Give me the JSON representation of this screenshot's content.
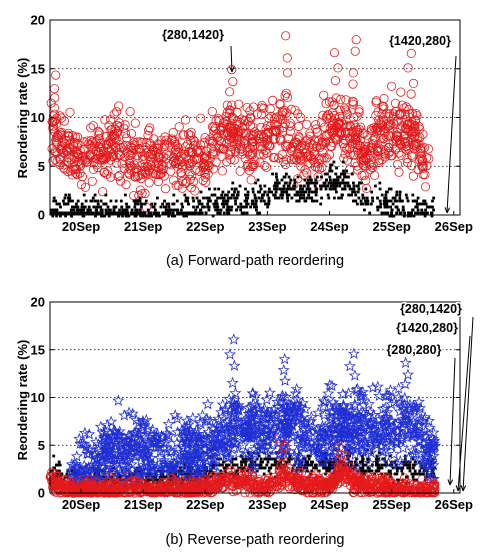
{
  "chart_data": [
    {
      "type": "scatter",
      "caption": "(a)  Forward-path reordering",
      "ylabel": "Reordering rate (%)",
      "xlabel": "",
      "x_ticks": [
        "20Sep",
        "21Sep",
        "22Sep",
        "23Sep",
        "24Sep",
        "25Sep",
        "26Sep"
      ],
      "xlim": [
        0,
        6.6
      ],
      "ylim": [
        0,
        20
      ],
      "y_ticks": [
        "0",
        "5",
        "10",
        "15",
        "20"
      ],
      "grid": true,
      "series": [
        {
          "marker": "circle",
          "color": "#e31a1c",
          "profile": [
            [
              0.0,
              9.0
            ],
            [
              0.2,
              7.0
            ],
            [
              0.5,
              5.5
            ],
            [
              0.8,
              6.5
            ],
            [
              1.0,
              7.0
            ],
            [
              1.2,
              6.5
            ],
            [
              1.5,
              5.0
            ],
            [
              1.8,
              5.5
            ],
            [
              2.0,
              6.0
            ],
            [
              2.2,
              6.0
            ],
            [
              2.5,
              6.0
            ],
            [
              2.7,
              8.0
            ],
            [
              2.9,
              8.5
            ],
            [
              3.1,
              8.0
            ],
            [
              3.3,
              7.5
            ],
            [
              3.5,
              8.5
            ],
            [
              3.7,
              9.0
            ],
            [
              3.9,
              7.5
            ],
            [
              4.1,
              6.0
            ],
            [
              4.3,
              6.5
            ],
            [
              4.5,
              9.0
            ],
            [
              4.7,
              8.5
            ],
            [
              4.9,
              8.0
            ],
            [
              5.1,
              6.0
            ],
            [
              5.3,
              8.0
            ],
            [
              5.5,
              9.0
            ],
            [
              5.7,
              8.5
            ],
            [
              5.9,
              8.0
            ],
            [
              6.1,
              5.0
            ]
          ],
          "peaks": [
            [
              0.05,
              14.5
            ],
            [
              2.95,
              15.5
            ],
            [
              3.8,
              20.3
            ],
            [
              4.6,
              17.0
            ],
            [
              4.9,
              18.5
            ],
            [
              5.8,
              17.0
            ]
          ],
          "spread": 3.8,
          "xrange": [
            0.0,
            6.1
          ]
        },
        {
          "marker": "square",
          "color": "#000000",
          "profile": [
            [
              0.0,
              0.4
            ],
            [
              1.0,
              0.3
            ],
            [
              2.0,
              0.3
            ],
            [
              2.7,
              1.2
            ],
            [
              3.0,
              1.5
            ],
            [
              3.5,
              2.0
            ],
            [
              3.8,
              3.0
            ],
            [
              4.0,
              2.0
            ],
            [
              4.5,
              3.5
            ],
            [
              4.8,
              3.0
            ],
            [
              5.0,
              2.0
            ],
            [
              5.5,
              1.0
            ],
            [
              6.0,
              0.6
            ],
            [
              6.2,
              0.2
            ]
          ],
          "peaks": [
            [
              4.55,
              6.0
            ],
            [
              4.75,
              5.5
            ]
          ],
          "spread": 1.8,
          "xrange": [
            0.0,
            6.2
          ]
        }
      ],
      "annotations": [
        {
          "text": "{280,1420}",
          "x": 3.0,
          "y": 15.2
        },
        {
          "text": "{1420,280}",
          "x": 6.35,
          "y": 0.3
        }
      ]
    },
    {
      "type": "scatter",
      "caption": "(b)  Reverse-path reordering",
      "ylabel": "Reordering rate (%)",
      "xlabel": "",
      "x_ticks": [
        "20Sep",
        "21Sep",
        "22Sep",
        "23Sep",
        "24Sep",
        "25Sep",
        "26Sep"
      ],
      "xlim": [
        0,
        6.6
      ],
      "ylim": [
        0,
        20
      ],
      "y_ticks": [
        "0",
        "5",
        "10",
        "15",
        "20"
      ],
      "grid": true,
      "series": [
        {
          "marker": "square",
          "color": "#000000",
          "profile": [
            [
              0.0,
              2.0
            ],
            [
              0.5,
              1.2
            ],
            [
              1.0,
              1.5
            ],
            [
              1.5,
              1.2
            ],
            [
              2.0,
              1.5
            ],
            [
              2.5,
              2.0
            ],
            [
              3.0,
              2.5
            ],
            [
              3.5,
              3.0
            ],
            [
              4.0,
              3.0
            ],
            [
              4.5,
              3.0
            ],
            [
              5.0,
              3.0
            ],
            [
              5.5,
              2.5
            ],
            [
              6.0,
              2.5
            ],
            [
              6.2,
              2.0
            ]
          ],
          "peaks": [
            [
              0.1,
              4.0
            ]
          ],
          "spread": 1.5,
          "xrange": [
            0.0,
            6.2
          ]
        },
        {
          "marker": "star",
          "color": "#1f2fd4",
          "profile": [
            [
              0.0,
              0.6
            ],
            [
              0.4,
              0.8
            ],
            [
              0.6,
              2.5
            ],
            [
              0.9,
              4.0
            ],
            [
              1.0,
              5.0
            ],
            [
              1.2,
              4.5
            ],
            [
              1.5,
              4.5
            ],
            [
              1.8,
              4.0
            ],
            [
              2.0,
              3.5
            ],
            [
              2.3,
              4.5
            ],
            [
              2.6,
              5.0
            ],
            [
              2.8,
              6.0
            ],
            [
              3.0,
              7.5
            ],
            [
              3.2,
              6.5
            ],
            [
              3.5,
              6.5
            ],
            [
              3.7,
              7.0
            ],
            [
              4.0,
              6.5
            ],
            [
              4.3,
              6.0
            ],
            [
              4.5,
              7.0
            ],
            [
              4.8,
              6.0
            ],
            [
              5.0,
              7.0
            ],
            [
              5.3,
              6.5
            ],
            [
              5.5,
              7.0
            ],
            [
              5.8,
              6.5
            ],
            [
              6.0,
              6.0
            ],
            [
              6.2,
              4.0
            ]
          ],
          "peaks": [
            [
              2.95,
              16.5
            ],
            [
              4.85,
              15.0
            ],
            [
              5.75,
              14.0
            ],
            [
              3.75,
              14.5
            ],
            [
              0.85,
              7.5
            ]
          ],
          "spread": 4.0,
          "xrange": [
            0.35,
            6.2
          ]
        },
        {
          "marker": "circle",
          "color": "#e31a1c",
          "profile": [
            [
              0.0,
              0.8
            ],
            [
              0.5,
              0.3
            ],
            [
              1.0,
              0.4
            ],
            [
              1.5,
              0.3
            ],
            [
              2.0,
              0.4
            ],
            [
              2.5,
              0.4
            ],
            [
              2.9,
              1.5
            ],
            [
              3.1,
              1.2
            ],
            [
              3.5,
              0.5
            ],
            [
              3.8,
              2.0
            ],
            [
              4.0,
              1.0
            ],
            [
              4.5,
              0.6
            ],
            [
              4.7,
              2.5
            ],
            [
              4.9,
              1.0
            ],
            [
              5.5,
              0.5
            ],
            [
              6.0,
              0.3
            ],
            [
              6.2,
              0.2
            ]
          ],
          "peaks": [
            [
              3.75,
              6.0
            ],
            [
              4.7,
              5.0
            ],
            [
              0.05,
              2.5
            ]
          ],
          "spread": 1.2,
          "xrange": [
            0.0,
            6.2
          ]
        }
      ],
      "annotations": [
        {
          "text": "{280,1420}",
          "x": 6.35,
          "y": 0.3
        },
        {
          "text": "{1420,280}",
          "x": 6.35,
          "y": 0.3
        },
        {
          "text": "{280,280}",
          "x": 6.2,
          "y": 1.0
        }
      ]
    }
  ]
}
